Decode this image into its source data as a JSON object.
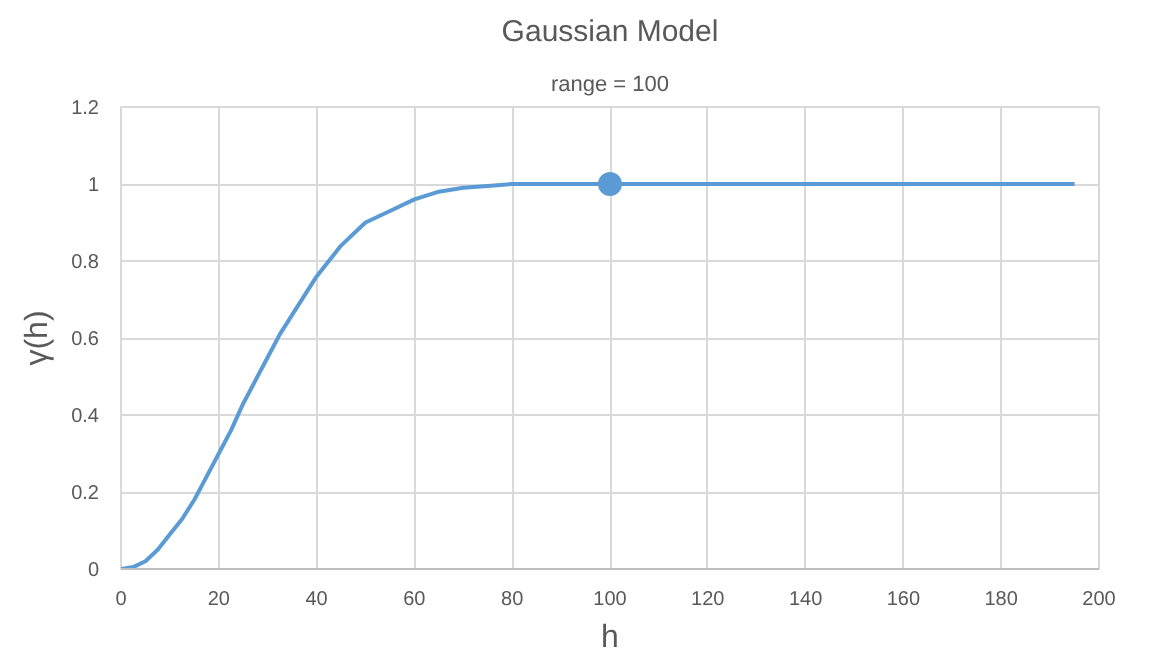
{
  "chart_data": {
    "type": "line",
    "title": "Gaussian Model",
    "subtitle": "range = 100",
    "xlabel": "h",
    "ylabel": "γ(h)",
    "series": [
      {
        "color": "#5b9bd5",
        "x": [
          0,
          2.5,
          5,
          7.5,
          10,
          12.5,
          15,
          17.5,
          20,
          22.5,
          25,
          27.5,
          30,
          32.5,
          35,
          37.5,
          40,
          42.5,
          45,
          47.5,
          50,
          55,
          60,
          65,
          70,
          75,
          80,
          90,
          100,
          120,
          140,
          160,
          180,
          195
        ],
        "values": [
          0,
          0.005,
          0.02,
          0.05,
          0.09,
          0.13,
          0.18,
          0.24,
          0.3,
          0.36,
          0.43,
          0.49,
          0.55,
          0.61,
          0.66,
          0.71,
          0.76,
          0.8,
          0.84,
          0.87,
          0.9,
          0.93,
          0.96,
          0.98,
          0.99,
          0.995,
          1,
          1,
          1,
          1,
          1,
          1,
          1,
          1
        ]
      },
      {
        "type": "scatter",
        "color": "#5b9bd5",
        "marker": "circle",
        "x": [
          100
        ],
        "values": [
          1
        ]
      }
    ],
    "xlim": [
      0,
      200
    ],
    "xticks": [
      0,
      20,
      40,
      60,
      80,
      100,
      120,
      140,
      160,
      180,
      200
    ],
    "ylim": [
      0,
      1.2
    ],
    "yticks": [
      0,
      0.2,
      0.4,
      0.6,
      0.8,
      1,
      1.2
    ],
    "grid": true
  }
}
